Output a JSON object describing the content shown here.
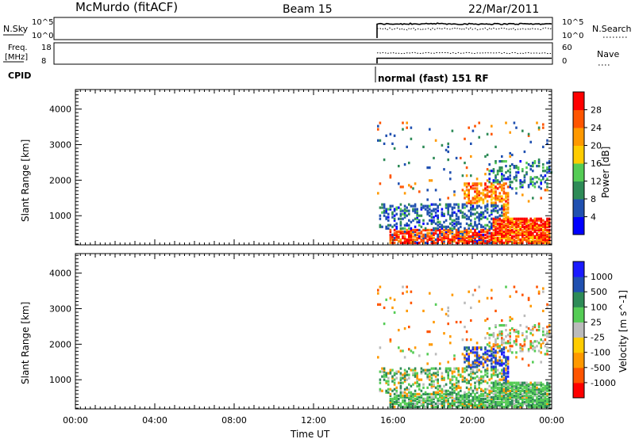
{
  "header": {
    "station": "McMurdo (fitACF)",
    "beam": "Beam 15",
    "date": "22/Mar/2011"
  },
  "sky_panel": {
    "left_label": "N.Sky",
    "left_ticks": [
      "10^5",
      "10^0"
    ],
    "right_ticks": [
      "10^5",
      "10^0"
    ],
    "right_label": "N.Search"
  },
  "freq_panel": {
    "left_label_line1": "Freq.",
    "left_label_line2": "[MHz]",
    "left_ticks": [
      "18",
      "8"
    ],
    "right_ticks": [
      "60",
      "0"
    ],
    "right_label": "Nave"
  },
  "cpid": {
    "label": "CPID",
    "mode_text": "normal (fast) 151 RF"
  },
  "time_axis": {
    "label": "Time UT",
    "ticks": [
      "00:00",
      "04:00",
      "08:00",
      "12:00",
      "16:00",
      "20:00",
      "00:00"
    ],
    "data_start_hour": 15.2
  },
  "colors": {
    "power_scale": [
      "#0000ff",
      "#2050b0",
      "#2e8b57",
      "#55cc55",
      "#ffcc00",
      "#ff9900",
      "#ff5500",
      "#ff0000"
    ],
    "velocity_scale": [
      "#ff0000",
      "#ff5500",
      "#ff9900",
      "#ffcc00",
      "#bbbbbb",
      "#55cc55",
      "#2e8b57",
      "#2050b0",
      "#1a1aff"
    ]
  },
  "chart_data": [
    {
      "type": "heatmap",
      "name": "power",
      "ylabel": "Slant Range [km]",
      "yticks": [
        "1000",
        "2000",
        "3000",
        "4000"
      ],
      "colorbar_label": "Power [dB]",
      "colorbar_ticks": [
        "4",
        "8",
        "12",
        "16",
        "20",
        "24",
        "28"
      ],
      "ylim": [
        180,
        4550
      ],
      "xlim": [
        0,
        24
      ]
    },
    {
      "type": "heatmap",
      "name": "velocity",
      "ylabel": "Slant Range [km]",
      "yticks": [
        "1000",
        "2000",
        "3000",
        "4000"
      ],
      "colorbar_label": "Velocity [m s^-1]",
      "colorbar_ticks": [
        "1000",
        "500",
        "100",
        "25",
        "-25",
        "-100",
        "-500",
        "-1000"
      ],
      "ylim": [
        180,
        4550
      ],
      "xlim": [
        0,
        24
      ]
    }
  ]
}
